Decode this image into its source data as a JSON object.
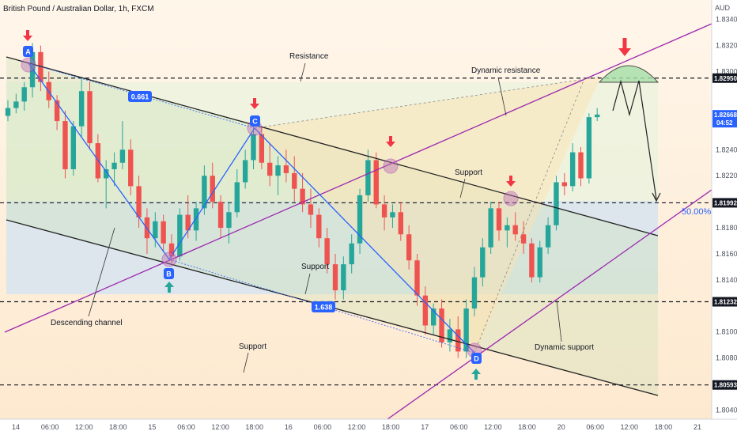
{
  "chart_data": {
    "type": "candlestick",
    "title": "British Pound / Australian Dollar, 1h, FXCM",
    "currency": "AUD",
    "ylim": [
      1.8033,
      1.8355
    ],
    "grid": false,
    "y_ticks": [
      1.834,
      1.832,
      1.83,
      1.826,
      1.824,
      1.822,
      1.818,
      1.816,
      1.814,
      1.81,
      1.808,
      1.804
    ],
    "x_ticks": [
      "14",
      "06:00",
      "12:00",
      "18:00",
      "15",
      "06:00",
      "12:00",
      "18:00",
      "16",
      "06:00",
      "12:00",
      "18:00",
      "17",
      "06:00",
      "12:00",
      "18:00",
      "20",
      "06:00",
      "12:00",
      "18:00",
      "21"
    ],
    "price_labels": [
      {
        "text": "1.82950",
        "value": 1.8295,
        "style": "black"
      },
      {
        "text": "1.82668",
        "value": 1.82668,
        "sub": "04:52",
        "style": "blue"
      },
      {
        "text": "1.81992",
        "value": 1.81992,
        "style": "black"
      },
      {
        "text": "1.81232",
        "value": 1.81232,
        "style": "black"
      },
      {
        "text": "1.80593",
        "value": 1.80593,
        "style": "black"
      }
    ],
    "levels": [
      1.8295,
      1.81992,
      1.81232,
      1.80593
    ],
    "fib_label": "50.00%",
    "pattern_points": [
      {
        "label": "A",
        "x": "14 03:00",
        "y": 1.8317
      },
      {
        "label": "B",
        "x": "15 03:00",
        "y": 1.8155
      },
      {
        "label": "C",
        "x": "15 21:00",
        "y": 1.8257
      },
      {
        "label": "D",
        "x": "17 10:00",
        "y": 1.8078
      }
    ],
    "ratios": [
      "0.661",
      "1.638"
    ],
    "annotations": [
      "Resistance",
      "Dynamic resistance",
      "Support",
      "Support",
      "Descending channel",
      "Support",
      "Dynamic support"
    ],
    "ohlc": [
      {
        "o": 1.8266,
        "h": 1.8278,
        "l": 1.8262,
        "c": 1.8272
      },
      {
        "o": 1.8272,
        "h": 1.8283,
        "l": 1.8268,
        "c": 1.8277
      },
      {
        "o": 1.8277,
        "h": 1.8292,
        "l": 1.827,
        "c": 1.8288
      },
      {
        "o": 1.8288,
        "h": 1.8322,
        "l": 1.828,
        "c": 1.8315
      },
      {
        "o": 1.8315,
        "h": 1.832,
        "l": 1.8285,
        "c": 1.8292
      },
      {
        "o": 1.8292,
        "h": 1.83,
        "l": 1.8272,
        "c": 1.8278
      },
      {
        "o": 1.8278,
        "h": 1.8282,
        "l": 1.8255,
        "c": 1.8262
      },
      {
        "o": 1.8262,
        "h": 1.827,
        "l": 1.8218,
        "c": 1.8225
      },
      {
        "o": 1.8225,
        "h": 1.8262,
        "l": 1.822,
        "c": 1.8258
      },
      {
        "o": 1.8258,
        "h": 1.8295,
        "l": 1.825,
        "c": 1.8285
      },
      {
        "o": 1.8285,
        "h": 1.8292,
        "l": 1.824,
        "c": 1.8245
      },
      {
        "o": 1.8245,
        "h": 1.8252,
        "l": 1.8215,
        "c": 1.8218
      },
      {
        "o": 1.8218,
        "h": 1.8232,
        "l": 1.8195,
        "c": 1.8225
      },
      {
        "o": 1.8225,
        "h": 1.8238,
        "l": 1.8212,
        "c": 1.823
      },
      {
        "o": 1.823,
        "h": 1.8262,
        "l": 1.8225,
        "c": 1.824
      },
      {
        "o": 1.824,
        "h": 1.8248,
        "l": 1.8205,
        "c": 1.8212
      },
      {
        "o": 1.8212,
        "h": 1.822,
        "l": 1.818,
        "c": 1.8188
      },
      {
        "o": 1.8188,
        "h": 1.8195,
        "l": 1.816,
        "c": 1.8172
      },
      {
        "o": 1.8172,
        "h": 1.8192,
        "l": 1.8165,
        "c": 1.8185
      },
      {
        "o": 1.8185,
        "h": 1.819,
        "l": 1.8162,
        "c": 1.8168
      },
      {
        "o": 1.8168,
        "h": 1.8175,
        "l": 1.8153,
        "c": 1.8158
      },
      {
        "o": 1.8158,
        "h": 1.8195,
        "l": 1.8155,
        "c": 1.819
      },
      {
        "o": 1.819,
        "h": 1.8205,
        "l": 1.8172,
        "c": 1.8178
      },
      {
        "o": 1.8178,
        "h": 1.82,
        "l": 1.817,
        "c": 1.8195
      },
      {
        "o": 1.8195,
        "h": 1.8228,
        "l": 1.819,
        "c": 1.822
      },
      {
        "o": 1.822,
        "h": 1.823,
        "l": 1.8195,
        "c": 1.82
      },
      {
        "o": 1.82,
        "h": 1.8205,
        "l": 1.8172,
        "c": 1.818
      },
      {
        "o": 1.818,
        "h": 1.82,
        "l": 1.8168,
        "c": 1.8192
      },
      {
        "o": 1.8192,
        "h": 1.8225,
        "l": 1.8188,
        "c": 1.8215
      },
      {
        "o": 1.8215,
        "h": 1.824,
        "l": 1.821,
        "c": 1.8232
      },
      {
        "o": 1.8232,
        "h": 1.826,
        "l": 1.8225,
        "c": 1.8252
      },
      {
        "o": 1.8252,
        "h": 1.8258,
        "l": 1.8225,
        "c": 1.823
      },
      {
        "o": 1.823,
        "h": 1.8245,
        "l": 1.8212,
        "c": 1.822
      },
      {
        "o": 1.822,
        "h": 1.8235,
        "l": 1.8205,
        "c": 1.8228
      },
      {
        "o": 1.8228,
        "h": 1.824,
        "l": 1.8215,
        "c": 1.8222
      },
      {
        "o": 1.8222,
        "h": 1.8235,
        "l": 1.82,
        "c": 1.821
      },
      {
        "o": 1.821,
        "h": 1.8222,
        "l": 1.8192,
        "c": 1.8198
      },
      {
        "o": 1.8198,
        "h": 1.821,
        "l": 1.818,
        "c": 1.819
      },
      {
        "o": 1.819,
        "h": 1.8195,
        "l": 1.8165,
        "c": 1.8172
      },
      {
        "o": 1.8172,
        "h": 1.818,
        "l": 1.8145,
        "c": 1.8152
      },
      {
        "o": 1.8152,
        "h": 1.816,
        "l": 1.8125,
        "c": 1.8132
      },
      {
        "o": 1.8132,
        "h": 1.8158,
        "l": 1.8125,
        "c": 1.8152
      },
      {
        "o": 1.8152,
        "h": 1.8175,
        "l": 1.8145,
        "c": 1.8168
      },
      {
        "o": 1.8168,
        "h": 1.821,
        "l": 1.816,
        "c": 1.8205
      },
      {
        "o": 1.8205,
        "h": 1.824,
        "l": 1.82,
        "c": 1.8232
      },
      {
        "o": 1.8232,
        "h": 1.8238,
        "l": 1.8195,
        "c": 1.8198
      },
      {
        "o": 1.8198,
        "h": 1.8205,
        "l": 1.8178,
        "c": 1.8188
      },
      {
        "o": 1.8188,
        "h": 1.8198,
        "l": 1.818,
        "c": 1.8192
      },
      {
        "o": 1.8192,
        "h": 1.82,
        "l": 1.817,
        "c": 1.8175
      },
      {
        "o": 1.8175,
        "h": 1.8182,
        "l": 1.8148,
        "c": 1.8155
      },
      {
        "o": 1.8155,
        "h": 1.816,
        "l": 1.812,
        "c": 1.8128
      },
      {
        "o": 1.8128,
        "h": 1.8135,
        "l": 1.8098,
        "c": 1.8105
      },
      {
        "o": 1.8105,
        "h": 1.8122,
        "l": 1.8098,
        "c": 1.8118
      },
      {
        "o": 1.8118,
        "h": 1.8125,
        "l": 1.8088,
        "c": 1.8092
      },
      {
        "o": 1.8092,
        "h": 1.811,
        "l": 1.8085,
        "c": 1.8102
      },
      {
        "o": 1.8102,
        "h": 1.8112,
        "l": 1.808,
        "c": 1.8085
      },
      {
        "o": 1.8085,
        "h": 1.8125,
        "l": 1.808,
        "c": 1.8118
      },
      {
        "o": 1.8118,
        "h": 1.815,
        "l": 1.8112,
        "c": 1.8142
      },
      {
        "o": 1.8142,
        "h": 1.8172,
        "l": 1.8135,
        "c": 1.8165
      },
      {
        "o": 1.8165,
        "h": 1.82,
        "l": 1.816,
        "c": 1.8195
      },
      {
        "o": 1.8195,
        "h": 1.82,
        "l": 1.817,
        "c": 1.8178
      },
      {
        "o": 1.8178,
        "h": 1.8188,
        "l": 1.8165,
        "c": 1.8182
      },
      {
        "o": 1.8182,
        "h": 1.8192,
        "l": 1.817,
        "c": 1.8175
      },
      {
        "o": 1.8175,
        "h": 1.8185,
        "l": 1.816,
        "c": 1.8168
      },
      {
        "o": 1.8168,
        "h": 1.8172,
        "l": 1.8138,
        "c": 1.8142
      },
      {
        "o": 1.8142,
        "h": 1.817,
        "l": 1.8138,
        "c": 1.8165
      },
      {
        "o": 1.8165,
        "h": 1.8188,
        "l": 1.816,
        "c": 1.8182
      },
      {
        "o": 1.8182,
        "h": 1.822,
        "l": 1.8178,
        "c": 1.8215
      },
      {
        "o": 1.8215,
        "h": 1.8222,
        "l": 1.8205,
        "c": 1.8212
      },
      {
        "o": 1.8212,
        "h": 1.8245,
        "l": 1.8208,
        "c": 1.8238
      },
      {
        "o": 1.8238,
        "h": 1.8242,
        "l": 1.8212,
        "c": 1.8218
      },
      {
        "o": 1.8218,
        "h": 1.8268,
        "l": 1.8214,
        "c": 1.8265
      },
      {
        "o": 1.8265,
        "h": 1.8272,
        "l": 1.8262,
        "c": 1.8267
      }
    ]
  }
}
